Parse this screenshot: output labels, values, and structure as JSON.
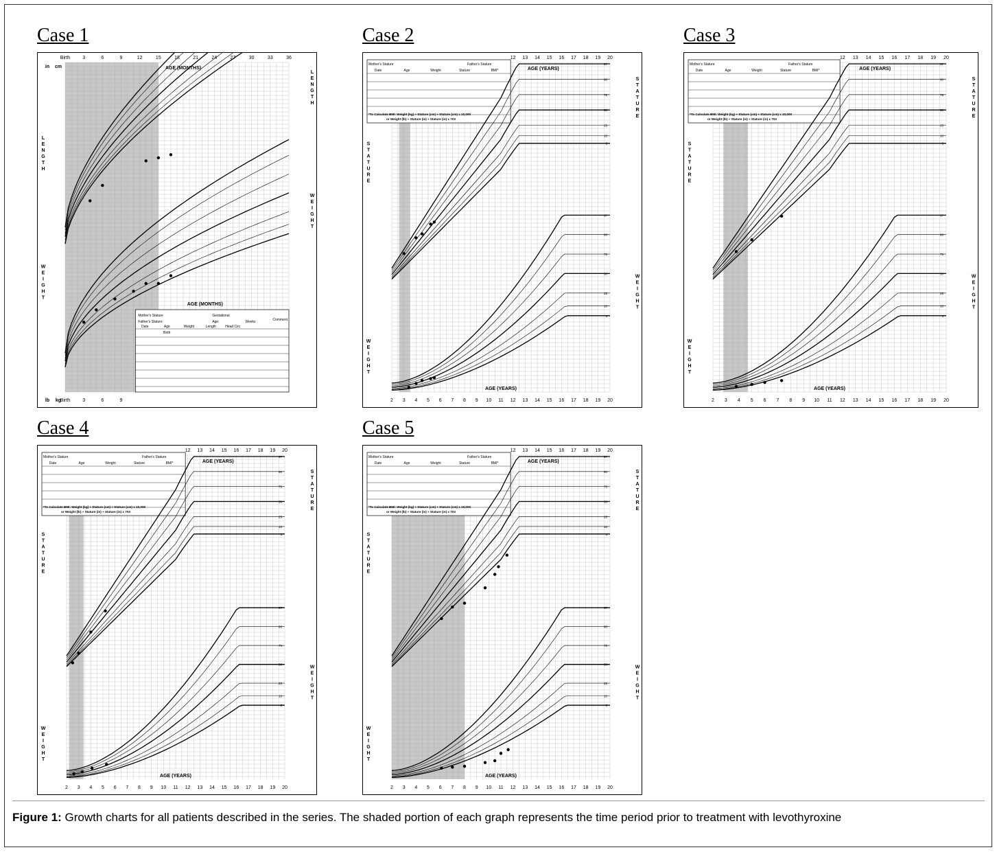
{
  "cases": [
    {
      "title": "Case 1",
      "chart_type": "infant",
      "shade": [
        0,
        15
      ],
      "age_unit": "months",
      "axis_title": "AGE (MONTHS)",
      "top_ticks": [
        "Birth",
        "3",
        "6",
        "9",
        "12",
        "15",
        "18",
        "21",
        "24",
        "27",
        "30",
        "33",
        "36"
      ],
      "bottom_ticks": [
        "Birth",
        "3",
        "6",
        "9"
      ],
      "percentiles": [
        "97",
        "90",
        "75",
        "50",
        "25",
        "10",
        "3"
      ],
      "left_label": "LENGTH",
      "right_label": "LENGTH",
      "left_label2": "WEIGHT",
      "right_label2": "WEIGHT",
      "unit_in": "in",
      "unit_cm": "cm",
      "unit_lb": "lb",
      "unit_kg": "kg",
      "table_labels": [
        "Mother's Stature",
        "Father's Stature",
        "Gestational",
        "Age:",
        "Weeks",
        "Comment",
        "Date",
        "Age",
        "Weight",
        "Length",
        "Head Circ",
        "Birth"
      ]
    },
    {
      "title": "Case 2",
      "chart_type": "child",
      "shade": [
        2.6,
        3.5
      ],
      "axis_title": "AGE (YEARS)",
      "top_ticks": [
        "12",
        "13",
        "14",
        "15",
        "16",
        "17",
        "18",
        "19",
        "20"
      ],
      "bottom_ticks": [
        "2",
        "3",
        "4",
        "5",
        "6",
        "7",
        "8",
        "9",
        "10",
        "11",
        "12",
        "13",
        "14",
        "15",
        "16",
        "17",
        "18",
        "19",
        "20"
      ],
      "percentiles": [
        "97",
        "90",
        "75",
        "50",
        "25",
        "10",
        "3"
      ],
      "left_label": "STATURE",
      "right_label": "STATURE",
      "left_label2": "WEIGHT",
      "right_label2": "WEIGHT",
      "table_labels": [
        "Mother's Stature",
        "Father's Stature",
        "Date",
        "Age",
        "Weight",
        "Stature",
        "BMI*",
        "*To Calculate BMI: Weight (kg) ÷ Stature (cm) ÷ Stature (cm) x 10,000",
        "or Weight (lb) ÷ Stature (in) ÷ Stature (in) x 703"
      ]
    },
    {
      "title": "Case 3",
      "chart_type": "child",
      "shade": [
        2.8,
        4.7
      ],
      "axis_title": "AGE (YEARS)",
      "top_ticks": [
        "12",
        "13",
        "14",
        "15",
        "16",
        "17",
        "18",
        "19",
        "20"
      ],
      "bottom_ticks": [
        "2",
        "3",
        "4",
        "5",
        "6",
        "7",
        "8",
        "9",
        "10",
        "11",
        "12",
        "13",
        "14",
        "15",
        "16",
        "17",
        "18",
        "19",
        "20"
      ],
      "percentiles": [
        "97",
        "90",
        "75",
        "50",
        "25",
        "10",
        "3"
      ],
      "left_label": "STATURE",
      "right_label": "STATURE",
      "left_label2": "WEIGHT",
      "right_label2": "WEIGHT",
      "table_labels": [
        "Mother's Stature",
        "Father's Stature",
        "Date",
        "Age",
        "Weight",
        "Stature",
        "BMI*",
        "*To Calculate BMI: Weight (kg) ÷ Stature (cm) ÷ Stature (cm) x 10,000",
        "or Weight (lb) ÷ Stature (in) ÷ Stature (in) x 703"
      ]
    },
    {
      "title": "Case 4",
      "chart_type": "child",
      "shade": [
        2.2,
        3.4
      ],
      "axis_title": "AGE (YEARS)",
      "top_ticks": [
        "12",
        "13",
        "14",
        "15",
        "16",
        "17",
        "18",
        "19",
        "20"
      ],
      "bottom_ticks": [
        "2",
        "3",
        "4",
        "5",
        "6",
        "7",
        "8",
        "9",
        "10",
        "11",
        "12",
        "13",
        "14",
        "15",
        "16",
        "17",
        "18",
        "19",
        "20"
      ],
      "percentiles": [
        "97",
        "90",
        "75",
        "50",
        "25",
        "10",
        "3"
      ],
      "left_label": "STATURE",
      "right_label": "STATURE",
      "left_label2": "WEIGHT",
      "right_label2": "WEIGHT",
      "table_labels": [
        "Mother's Stature",
        "Father's Stature",
        "Date",
        "Age",
        "Weight",
        "Stature",
        "BMI*",
        "*To Calculate BMI: Weight (kg) ÷ Stature (cm) ÷ Stature (cm) x 10,000",
        "or Weight (lb) ÷ Stature (in) ÷ Stature (in) x 703"
      ]
    },
    {
      "title": "Case 5",
      "chart_type": "child",
      "shade": [
        2.0,
        8.0
      ],
      "axis_title": "AGE (YEARS)",
      "top_ticks": [
        "12",
        "13",
        "14",
        "15",
        "16",
        "17",
        "18",
        "19",
        "20"
      ],
      "bottom_ticks": [
        "2",
        "3",
        "4",
        "5",
        "6",
        "7",
        "8",
        "9",
        "10",
        "11",
        "12",
        "13",
        "14",
        "15",
        "16",
        "17",
        "18",
        "19",
        "20"
      ],
      "percentiles": [
        "97",
        "90",
        "75",
        "50",
        "25",
        "10",
        "3"
      ],
      "left_label": "STATURE",
      "right_label": "STATURE",
      "left_label2": "WEIGHT",
      "right_label2": "WEIGHT",
      "table_labels": [
        "Mother's Stature",
        "Father's Stature",
        "Date",
        "Age",
        "Weight",
        "Stature",
        "BMI*",
        "*To Calculate BMI: Weight (kg) ÷ Stature (cm) ÷ Stature (cm) x 10,000",
        "or Weight (lb) ÷ Stature (in) ÷ Stature (in) x 703"
      ]
    }
  ],
  "caption": {
    "label": "Figure 1:",
    "text": " Growth charts for all patients described in the series. The shaded portion of each graph represents the time period prior to treatment with levothyroxine"
  },
  "chart_data": [
    {
      "type": "scatter",
      "title": "Case 1",
      "series": [
        {
          "name": "Length (cm)",
          "x": [
            4,
            6,
            13,
            15,
            17
          ],
          "y": [
            60,
            65,
            73,
            74,
            75
          ]
        },
        {
          "name": "Weight (kg)",
          "x": [
            3,
            5,
            8,
            11,
            13,
            15,
            17
          ],
          "y": [
            5.5,
            6.3,
            7.0,
            7.5,
            8.0,
            8.0,
            8.5
          ]
        }
      ]
    },
    {
      "type": "scatter",
      "title": "Case 2",
      "series": [
        {
          "name": "Stature (cm)",
          "x": [
            3,
            4,
            4.5,
            5.2,
            5.5
          ],
          "y": [
            95,
            103,
            105,
            110,
            111
          ]
        },
        {
          "name": "Weight (kg)",
          "x": [
            3.4,
            4,
            4.5,
            5.2,
            5.5
          ],
          "y": [
            12.5,
            14.5,
            16,
            17,
            17.5
          ]
        }
      ]
    },
    {
      "type": "scatter",
      "title": "Case 3",
      "series": [
        {
          "name": "Stature (cm)",
          "x": [
            3.8,
            5,
            7.3
          ],
          "y": [
            96,
            102,
            114
          ]
        },
        {
          "name": "Weight (kg)",
          "x": [
            3.8,
            5,
            6,
            7.3
          ],
          "y": [
            13,
            14,
            15,
            16
          ]
        }
      ]
    },
    {
      "type": "scatter",
      "title": "Case 4",
      "series": [
        {
          "name": "Stature (cm)",
          "x": [
            2.5,
            3,
            4,
            5.2
          ],
          "y": [
            84,
            89,
            100,
            111
          ]
        },
        {
          "name": "Weight (kg)",
          "x": [
            2.6,
            3.3,
            4.1,
            5.3
          ],
          "y": [
            13,
            14,
            16,
            18
          ]
        }
      ]
    },
    {
      "type": "scatter",
      "title": "Case 5",
      "series": [
        {
          "name": "Stature (cm)",
          "x": [
            6.1,
            7,
            8,
            9.7,
            10.5,
            10.8,
            11.5
          ],
          "y": [
            107,
            113,
            115,
            123,
            130,
            134,
            140
          ]
        },
        {
          "name": "Weight (kg)",
          "x": [
            6.1,
            7,
            8,
            9.7,
            10.5,
            11,
            11.6
          ],
          "y": [
            16,
            16.5,
            17,
            19,
            20,
            24,
            26
          ]
        }
      ]
    }
  ]
}
